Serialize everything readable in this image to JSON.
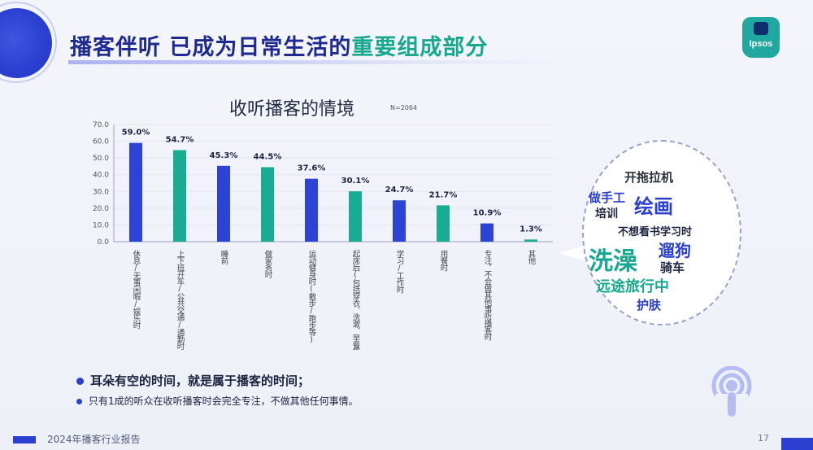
{
  "slide": {
    "title_part1": "播客伴听  已成为日常生活的",
    "title_highlight": "重要组成部分",
    "logo_text": "Ipsos",
    "chart_title": "收听播客的情境",
    "sample_note": "N=2064",
    "page_number": "17",
    "footer_text": "2024年播客行业报告"
  },
  "word_cloud": {
    "words": [
      {
        "text": "开拖拉机",
        "color": "#2b3138"
      },
      {
        "text": "做手工",
        "color": "#2b3fd0"
      },
      {
        "text": "绘画",
        "color": "#2b3fd0"
      },
      {
        "text": "培训",
        "color": "#1c2340"
      },
      {
        "text": "不想看书学习时",
        "color": "#1c2340"
      },
      {
        "text": "洗澡",
        "color": "#17a88f"
      },
      {
        "text": "遛狗",
        "color": "#2b3fd0"
      },
      {
        "text": "骑车",
        "color": "#1c2340"
      },
      {
        "text": "远途旅行中",
        "color": "#17a88f"
      },
      {
        "text": "护肤",
        "color": "#2b3fd0"
      }
    ]
  },
  "bullets": [
    "耳朵有空的时间，就是属于播客的时间；",
    "只有1成的听众在收听播客时会完全专注，不做其他任何事情。"
  ],
  "chart_data": {
    "type": "bar",
    "categories": [
      "休息/无事闲暇/娱乐时",
      "上下班开车/公共交通/通勤时/搭乘",
      "睡前",
      "做家务时",
      "运动健身时(散步/跑步等)",
      "起床后(包括穿衣、洗漱、早餐等)",
      "学习/工作时",
      "用餐时",
      "专注，不会做其他事听播客时",
      "其他"
    ],
    "values": [
      59.0,
      54.7,
      45.3,
      44.5,
      37.6,
      30.1,
      24.7,
      21.7,
      10.9,
      1.3
    ],
    "value_labels": [
      "59.0%",
      "54.7%",
      "45.3%",
      "44.5%",
      "37.6%",
      "30.1%",
      "24.7%",
      "21.7%",
      "10.9%",
      "1.3%"
    ],
    "colors": [
      "#2b44d6",
      "#16ad92",
      "#2b44d6",
      "#16ad92",
      "#2b44d6",
      "#16ad92",
      "#2b44d6",
      "#16ad92",
      "#2b44d6",
      "#16ad92"
    ],
    "y_ticks": [
      "0.0",
      "10.0",
      "20.0",
      "30.0",
      "40.0",
      "50.0",
      "60.0",
      "70.0"
    ],
    "ylim": [
      0,
      70
    ],
    "grid": true,
    "legend": "none"
  }
}
